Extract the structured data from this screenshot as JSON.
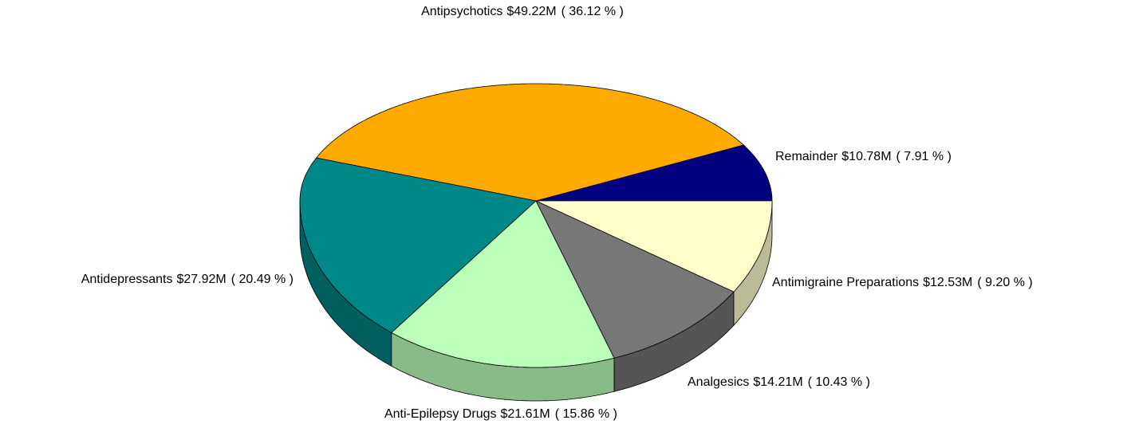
{
  "chart_data": {
    "type": "pie",
    "categories": [
      "Remainder",
      "Antipsychotics",
      "Antidepressants",
      "Anti-Epilepsy Drugs",
      "Analgesics",
      "Antimigraine Preparations"
    ],
    "values": [
      10.78,
      49.22,
      27.92,
      21.61,
      14.21,
      12.53
    ],
    "value_labels": [
      "$10.78M",
      "$49.22M",
      "$27.92M",
      "$21.61M",
      "$14.21M",
      "$12.53M"
    ],
    "percents": [
      7.91,
      36.12,
      20.49,
      15.86,
      10.43,
      9.2
    ],
    "percent_labels": [
      "( 7.91 % )",
      "( 36.12 % )",
      "( 20.49 % )",
      "( 15.86 % )",
      "( 10.43 % )",
      "( 9.20 % )"
    ],
    "colors": [
      "#000080",
      "#ffaa00",
      "#008888",
      "#bbffbb",
      "#777777",
      "#ffffcc"
    ],
    "side_colors": [
      "#000050",
      "#aa7000",
      "#006060",
      "#88bb88",
      "#555555",
      "#bbbb99"
    ]
  }
}
